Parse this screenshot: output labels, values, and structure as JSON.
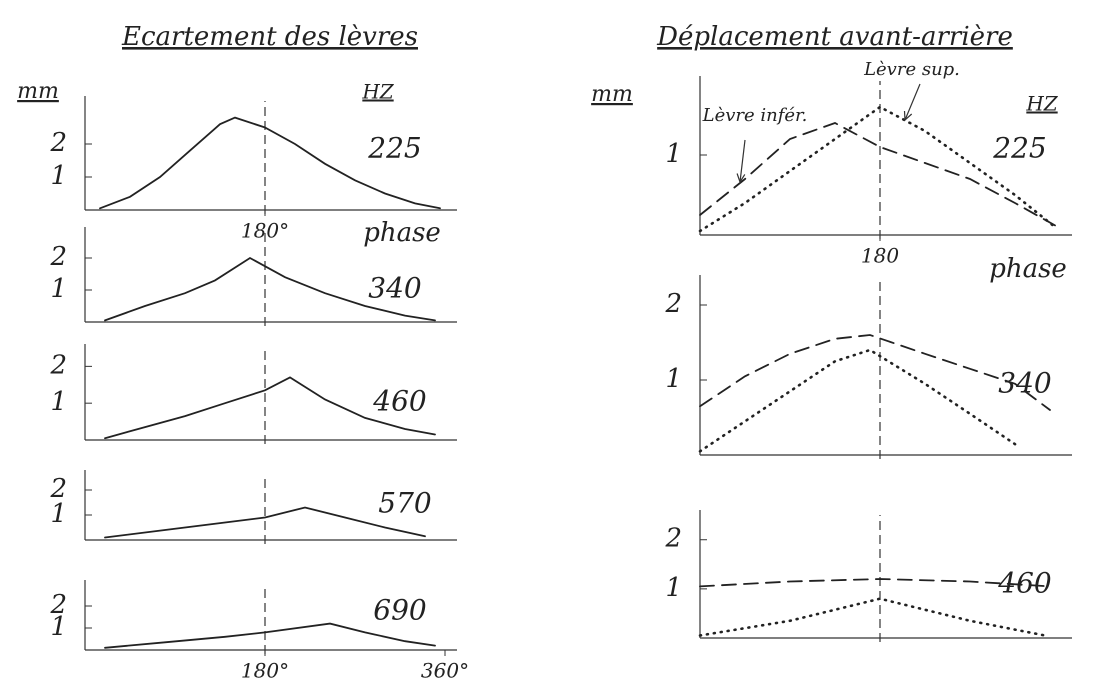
{
  "chart_data": [
    {
      "type": "line",
      "title": "Ecartement des lèvres",
      "y_label": "mm",
      "unit": "HZ",
      "frequency": "225",
      "x_label": "phase",
      "xlim": [
        0,
        360
      ],
      "ylim": [
        0,
        3
      ],
      "yticks": [
        1,
        2
      ],
      "xticks": [
        {
          "value": 180,
          "label": "180°"
        }
      ],
      "vline": 180,
      "series": [
        {
          "color": "#222222",
          "style": "solid",
          "x": [
            15,
            45,
            75,
            105,
            135,
            150,
            180,
            210,
            240,
            270,
            300,
            330,
            355
          ],
          "values": [
            0.05,
            0.4,
            1.0,
            1.8,
            2.6,
            2.8,
            2.5,
            2.0,
            1.4,
            0.9,
            0.5,
            0.2,
            0.05
          ]
        }
      ]
    },
    {
      "type": "line",
      "frequency": "340",
      "xlim": [
        0,
        360
      ],
      "ylim": [
        0,
        2.5
      ],
      "yticks": [
        1,
        2
      ],
      "vline": 180,
      "series": [
        {
          "color": "#222222",
          "style": "solid",
          "x": [
            20,
            60,
            100,
            130,
            165,
            200,
            240,
            280,
            320,
            350
          ],
          "values": [
            0.05,
            0.5,
            0.9,
            1.3,
            2.0,
            1.4,
            0.9,
            0.5,
            0.2,
            0.05
          ]
        }
      ]
    },
    {
      "type": "line",
      "frequency": "460",
      "xlim": [
        0,
        360
      ],
      "ylim": [
        0,
        2.2
      ],
      "yticks": [
        1,
        2
      ],
      "vline": 180,
      "series": [
        {
          "color": "#222222",
          "style": "solid",
          "x": [
            20,
            60,
            100,
            140,
            180,
            205,
            240,
            280,
            320,
            350
          ],
          "values": [
            0.05,
            0.35,
            0.65,
            1.0,
            1.35,
            1.7,
            1.1,
            0.6,
            0.3,
            0.15
          ]
        }
      ]
    },
    {
      "type": "line",
      "frequency": "570",
      "xlim": [
        0,
        360
      ],
      "ylim": [
        0,
        2.2
      ],
      "yticks": [
        1,
        2
      ],
      "vline": 180,
      "series": [
        {
          "color": "#222222",
          "style": "solid",
          "x": [
            20,
            80,
            140,
            180,
            220,
            260,
            300,
            340
          ],
          "values": [
            0.1,
            0.4,
            0.7,
            0.9,
            1.3,
            0.9,
            0.5,
            0.15
          ]
        }
      ]
    },
    {
      "type": "line",
      "frequency": "690",
      "xlim": [
        0,
        360
      ],
      "ylim": [
        0,
        2.5
      ],
      "yticks": [
        1,
        2
      ],
      "xticks": [
        {
          "value": 180,
          "label": "180°"
        },
        {
          "value": 360,
          "label": "360°"
        }
      ],
      "vline": 180,
      "series": [
        {
          "color": "#222222",
          "style": "solid",
          "x": [
            20,
            80,
            140,
            180,
            245,
            280,
            320,
            350
          ],
          "values": [
            0.1,
            0.35,
            0.6,
            0.8,
            1.2,
            0.8,
            0.4,
            0.2
          ]
        }
      ]
    },
    {
      "type": "line",
      "title": "Déplacement avant-arrière",
      "y_label": "mm",
      "unit": "HZ",
      "frequency": "225",
      "x_label": "phase",
      "xlim": [
        0,
        360
      ],
      "ylim": [
        0,
        1.8
      ],
      "yticks": [
        1
      ],
      "xticks": [
        180
      ],
      "vline": 180,
      "series": [
        {
          "name": "Lèvre sup.",
          "color": "#222222",
          "style": "dotted",
          "x": [
            0,
            45,
            90,
            135,
            180,
            225,
            270,
            315,
            355
          ],
          "values": [
            0.05,
            0.4,
            0.8,
            1.2,
            1.6,
            1.3,
            0.9,
            0.5,
            0.1
          ]
        },
        {
          "name": "Lèvre infér.",
          "color": "#222222",
          "style": "dashed",
          "x": [
            0,
            45,
            90,
            135,
            180,
            225,
            270,
            315,
            355
          ],
          "values": [
            0.25,
            0.7,
            1.2,
            1.4,
            1.1,
            0.9,
            0.7,
            0.4,
            0.12
          ]
        }
      ]
    },
    {
      "type": "line",
      "frequency": "340",
      "xlim": [
        0,
        360
      ],
      "ylim": [
        0,
        2.2
      ],
      "yticks": [
        1,
        2
      ],
      "vline": 180,
      "series": [
        {
          "color": "#222222",
          "style": "dotted",
          "x": [
            0,
            45,
            90,
            135,
            170,
            225,
            270,
            320
          ],
          "values": [
            0.05,
            0.45,
            0.85,
            1.25,
            1.4,
            0.95,
            0.55,
            0.1
          ]
        },
        {
          "color": "#222222",
          "style": "dashed",
          "x": [
            0,
            45,
            90,
            135,
            170,
            225,
            270,
            315,
            350
          ],
          "values": [
            0.65,
            1.05,
            1.35,
            1.55,
            1.6,
            1.35,
            1.15,
            0.95,
            0.6
          ]
        }
      ]
    },
    {
      "type": "line",
      "frequency": "460",
      "xlim": [
        0,
        360
      ],
      "ylim": [
        0,
        2.3
      ],
      "yticks": [
        1,
        2
      ],
      "vline": 180,
      "series": [
        {
          "color": "#222222",
          "style": "dotted",
          "x": [
            0,
            90,
            180,
            270,
            345
          ],
          "values": [
            0.05,
            0.35,
            0.8,
            0.35,
            0.05
          ]
        },
        {
          "color": "#222222",
          "style": "dashed",
          "x": [
            0,
            90,
            180,
            270,
            350
          ],
          "values": [
            1.05,
            1.15,
            1.2,
            1.15,
            1.05
          ]
        }
      ]
    }
  ]
}
